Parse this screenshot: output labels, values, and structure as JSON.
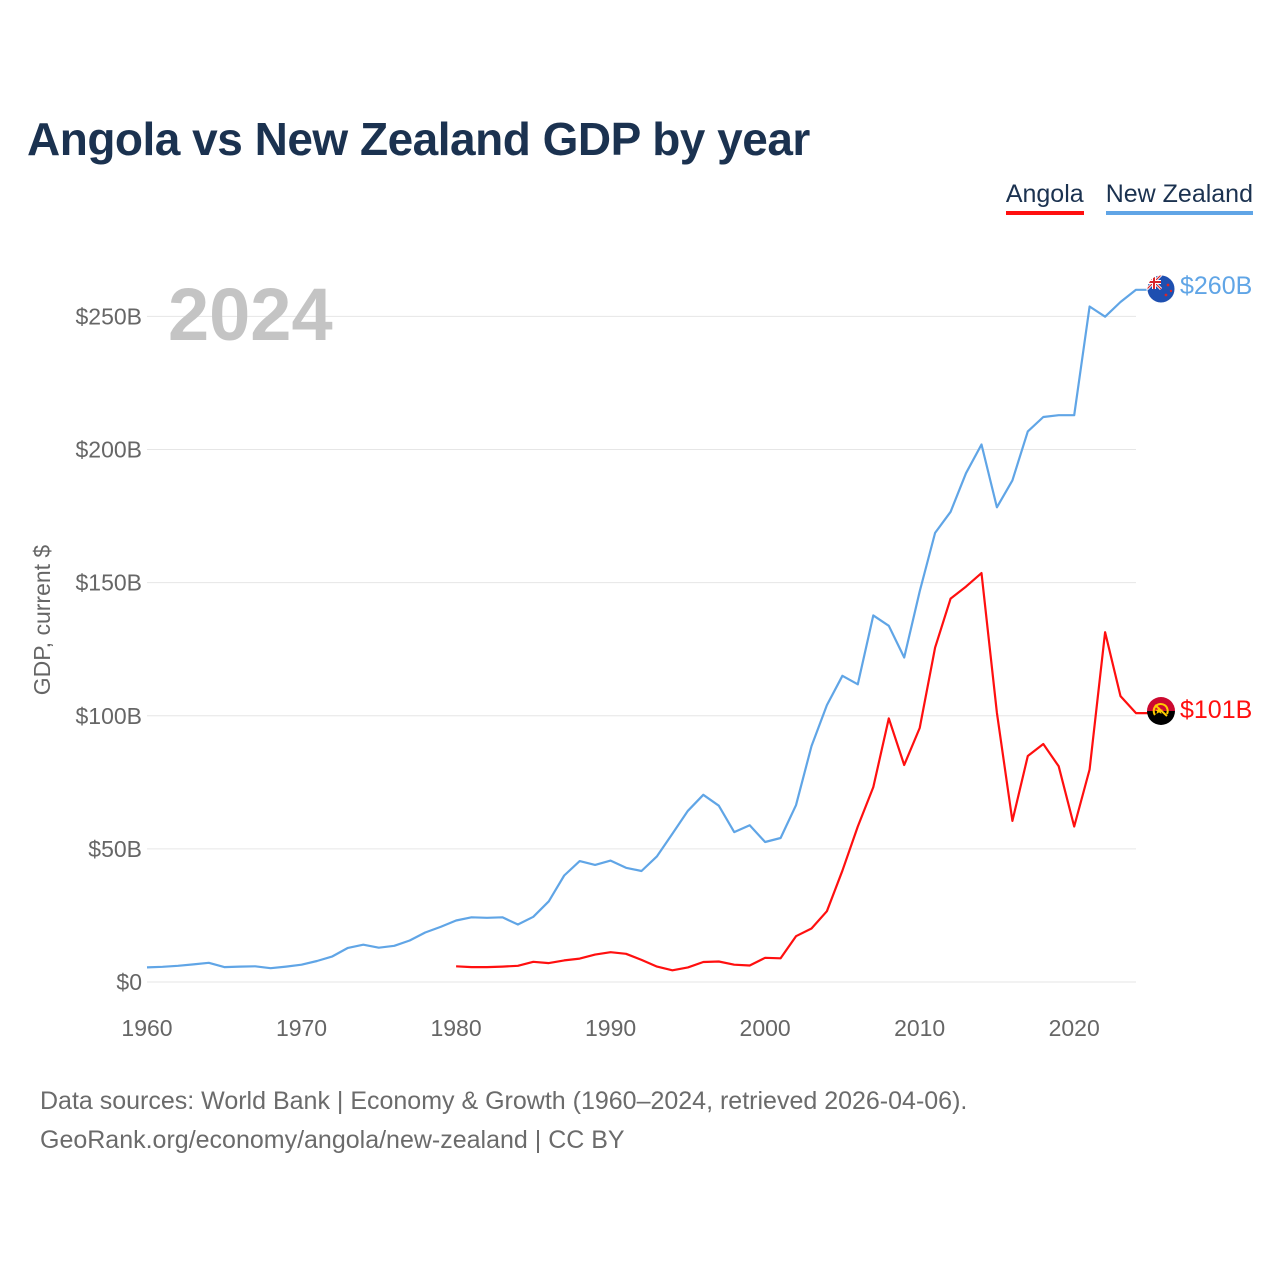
{
  "title": "Angola vs New Zealand GDP by year",
  "legend": {
    "angola": {
      "label": "Angola",
      "color": "#ff0f0f"
    },
    "new_zealand": {
      "label": "New Zealand",
      "color": "#60a5e6"
    }
  },
  "chart_data": {
    "type": "line",
    "title": "Angola vs New Zealand GDP by year",
    "xlabel": "",
    "ylabel": "GDP, current $",
    "xlim": [
      1960,
      2024
    ],
    "ylim": [
      0,
      270
    ],
    "x_ticks": [
      1960,
      1970,
      1980,
      1990,
      2000,
      2010,
      2020
    ],
    "x_tick_labels": [
      "1960",
      "1970",
      "1980",
      "1990",
      "2000",
      "2010",
      "2020"
    ],
    "y_ticks": [
      0,
      50,
      100,
      150,
      200,
      250
    ],
    "y_tick_labels": [
      "$0",
      "$50B",
      "$100B",
      "$150B",
      "$200B",
      "$250B"
    ],
    "year_watermark": "2024",
    "legend_position": "top-right",
    "grid": true,
    "series": [
      {
        "name": "New Zealand",
        "color": "#60a5e6",
        "end_label": "$260B",
        "x": [
          1960,
          1961,
          1962,
          1963,
          1964,
          1965,
          1966,
          1967,
          1968,
          1969,
          1970,
          1971,
          1972,
          1973,
          1974,
          1975,
          1976,
          1977,
          1978,
          1979,
          1980,
          1981,
          1982,
          1983,
          1984,
          1985,
          1986,
          1987,
          1988,
          1989,
          1990,
          1991,
          1992,
          1993,
          1994,
          1995,
          1996,
          1997,
          1998,
          1999,
          2000,
          2001,
          2002,
          2003,
          2004,
          2005,
          2006,
          2007,
          2008,
          2009,
          2010,
          2011,
          2012,
          2013,
          2014,
          2015,
          2016,
          2017,
          2018,
          2019,
          2020,
          2021,
          2022,
          2023,
          2024
        ],
        "values": [
          5.5,
          5.7,
          6.1,
          6.6,
          7.2,
          5.6,
          5.8,
          5.9,
          5.2,
          5.8,
          6.5,
          7.9,
          9.6,
          12.8,
          14,
          12.9,
          13.6,
          15.6,
          18.6,
          20.7,
          23.1,
          24.3,
          24.1,
          24.3,
          21.6,
          24.5,
          30.3,
          40,
          45.4,
          44,
          45.6,
          42.9,
          41.7,
          47.2,
          55.7,
          64.3,
          70.3,
          66.2,
          56.3,
          58.9,
          52.6,
          54.1,
          66.4,
          88.6,
          104,
          115,
          111.8,
          137.7,
          133.8,
          121.9,
          146.7,
          168.7,
          176.6,
          191.1,
          201.9,
          178.3,
          188.4,
          206.8,
          212.2,
          212.9,
          212.9,
          253.7,
          249.9,
          255.4,
          260
        ]
      },
      {
        "name": "Angola",
        "color": "#ff0f0f",
        "end_label": "$101B",
        "x": [
          1980,
          1981,
          1982,
          1983,
          1984,
          1985,
          1986,
          1987,
          1988,
          1989,
          1990,
          1991,
          1992,
          1993,
          1994,
          1995,
          1996,
          1997,
          1998,
          1999,
          2000,
          2001,
          2002,
          2003,
          2004,
          2005,
          2006,
          2007,
          2008,
          2009,
          2010,
          2011,
          2012,
          2013,
          2014,
          2015,
          2016,
          2017,
          2018,
          2019,
          2020,
          2021,
          2022,
          2023,
          2024
        ],
        "values": [
          5.9,
          5.6,
          5.6,
          5.8,
          6.1,
          7.6,
          7.1,
          8.1,
          8.8,
          10.3,
          11.2,
          10.6,
          8.3,
          5.8,
          4.4,
          5.5,
          7.5,
          7.7,
          6.5,
          6.2,
          9.1,
          8.9,
          17.2,
          20.1,
          26.6,
          41.8,
          58.4,
          73.2,
          99,
          81.5,
          95.4,
          125.6,
          144,
          148.5,
          153.6,
          101.1,
          60.5,
          84.9,
          89.4,
          81,
          58.4,
          79.8,
          131.4,
          107.4,
          101
        ]
      }
    ]
  },
  "source": {
    "line1": "Data sources: World Bank | Economy & Growth (1960–2024, retrieved 2026-04-06).",
    "line2": "GeoRank.org/economy/angola/new-zealand | CC BY"
  }
}
